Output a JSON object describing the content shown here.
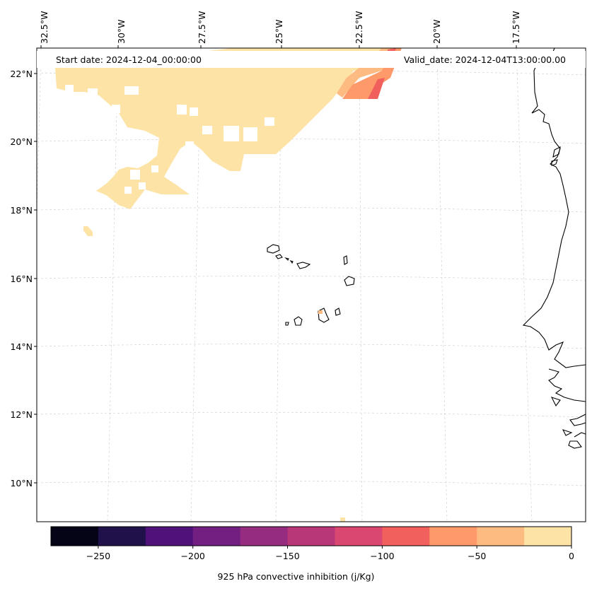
{
  "map": {
    "title_left": "Start date: 2024-12-04_00:00:00",
    "title_right": "Valid_date: 2024-12-04T13:00:00.00",
    "lon_labels": [
      "32.5°W",
      "30°W",
      "27.5°W",
      "25°W",
      "22.5°W",
      "20°W",
      "17.5°W"
    ],
    "lat_labels": [
      "22°N",
      "20°N",
      "18°N",
      "16°N",
      "14°N",
      "12°N",
      "10°N"
    ],
    "colorbar": {
      "label": "925 hPa convective inhibition (j/Kg)",
      "ticks": [
        "−250",
        "−200",
        "−150",
        "−100",
        "−50",
        "0"
      ],
      "colors": [
        "#050417",
        "#20114b",
        "#4f127b",
        "#721f81",
        "#952c80",
        "#b73779",
        "#da4770",
        "#f1605d",
        "#fe9a6a",
        "#febb81",
        "#fde3a5"
      ]
    },
    "features": {
      "islands": "Cabo Verde islands",
      "coastline": "West African coast"
    }
  }
}
